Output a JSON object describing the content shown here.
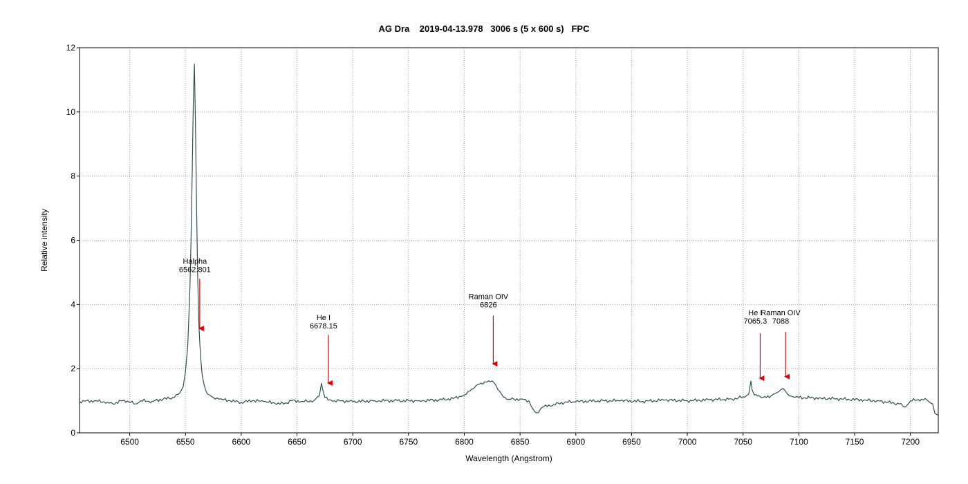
{
  "chart_data": {
    "type": "line",
    "title": "AG Dra    2019-04-13.978   3006 s (5 x 600 s)   FPC",
    "xlabel": "Wavelength (Angstrom)",
    "ylabel": "Relative intensity",
    "xlim": [
      6455,
      7225
    ],
    "ylim": [
      0,
      12
    ],
    "xticks": [
      6500,
      6550,
      6600,
      6650,
      6700,
      6750,
      6800,
      6850,
      6900,
      6950,
      7000,
      7050,
      7100,
      7150,
      7200
    ],
    "yticks": [
      0,
      2,
      4,
      6,
      8,
      10,
      12
    ],
    "grid": true,
    "line_color": "#2f4f4f",
    "arrow_color": "#e00000",
    "series": [
      {
        "x": [
          6455,
          6470,
          6480,
          6485,
          6495,
          6505,
          6510,
          6520,
          6530,
          6540,
          6545,
          6548,
          6550,
          6552,
          6554,
          6555,
          6556,
          6557,
          6558,
          6559,
          6560,
          6561,
          6562,
          6563,
          6564,
          6565,
          6567,
          6570,
          6575,
          6580,
          6590,
          6600,
          6610,
          6620,
          6630,
          6638,
          6645,
          6655,
          6665,
          6670,
          6672,
          6673,
          6675,
          6678,
          6682,
          6690,
          6700,
          6720,
          6740,
          6760,
          6780,
          6790,
          6800,
          6805,
          6810,
          6815,
          6820,
          6822,
          6825,
          6827,
          6830,
          6835,
          6840,
          6850,
          6858,
          6862,
          6865,
          6870,
          6880,
          6890,
          6900,
          6920,
          6940,
          6960,
          6980,
          7000,
          7020,
          7040,
          7050,
          7055,
          7057,
          7058,
          7060,
          7063,
          7068,
          7075,
          7080,
          7084,
          7086,
          7088,
          7090,
          7095,
          7100,
          7120,
          7140,
          7160,
          7170,
          7180,
          7190,
          7195,
          7200,
          7210,
          7215,
          7220,
          7222,
          7225
        ],
        "y": [
          0.98,
          1.0,
          0.95,
          0.9,
          1.02,
          0.9,
          1.0,
          0.98,
          1.05,
          1.1,
          1.25,
          1.45,
          1.9,
          2.7,
          4.5,
          6.0,
          8.0,
          10.2,
          11.5,
          9.5,
          6.9,
          4.8,
          3.4,
          2.7,
          2.2,
          1.8,
          1.45,
          1.2,
          1.1,
          1.05,
          1.0,
          0.95,
          1.0,
          0.98,
          0.92,
          0.9,
          1.0,
          0.98,
          1.0,
          1.15,
          1.55,
          1.35,
          1.1,
          1.02,
          0.98,
          1.0,
          0.97,
          1.0,
          1.0,
          1.0,
          1.03,
          1.07,
          1.18,
          1.3,
          1.45,
          1.55,
          1.58,
          1.62,
          1.62,
          1.55,
          1.35,
          1.12,
          1.05,
          1.05,
          1.0,
          0.72,
          0.62,
          0.8,
          0.88,
          0.95,
          0.97,
          1.0,
          1.0,
          0.98,
          1.02,
          1.0,
          1.03,
          1.05,
          1.12,
          1.2,
          1.62,
          1.35,
          1.18,
          1.15,
          1.1,
          1.15,
          1.25,
          1.35,
          1.38,
          1.3,
          1.2,
          1.12,
          1.1,
          1.08,
          1.05,
          1.02,
          1.0,
          0.95,
          0.9,
          0.8,
          1.0,
          1.05,
          1.02,
          0.9,
          0.6,
          0.55
        ]
      }
    ],
    "annotations": [
      {
        "line1": "Halpha",
        "line2": "6562.801",
        "x": 6562.801,
        "text_y": 5.05,
        "arrow_from": 4.8,
        "arrow_to": 3.1
      },
      {
        "line1": "He I",
        "line2": "6678.15",
        "x": 6678.15,
        "text_y": 3.3,
        "arrow_from": 3.05,
        "arrow_to": 1.4
      },
      {
        "line1": "Raman OIV",
        "line2": "6826",
        "x": 6826,
        "text_y": 3.95,
        "arrow_from": 3.65,
        "arrow_to": 2.0
      },
      {
        "line1": "He I",
        "line2": "7065.3",
        "x": 7065.3,
        "text_y": 3.45,
        "arrow_from": 3.1,
        "arrow_to": 1.55
      },
      {
        "line1": "Raman OIV",
        "line2": "7088",
        "x": 7088,
        "text_y": 3.45,
        "arrow_from": 3.15,
        "arrow_to": 1.6
      }
    ]
  }
}
